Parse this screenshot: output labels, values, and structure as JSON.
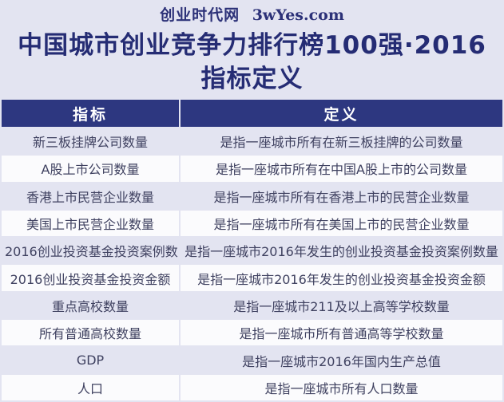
{
  "site_banner": {
    "site_name": "创业时代网",
    "site_url": "3wYes.com"
  },
  "title": {
    "line1": "中国城市创业竞争力排行榜100强·2016",
    "line2": "指标定义"
  },
  "table": {
    "headers": [
      "指标",
      "定义"
    ],
    "rows": [
      [
        "新三板挂牌公司数量",
        "是指一座城市所有在新三板挂牌的公司数量"
      ],
      [
        "A股上市公司数量",
        "是指一座城市所有在中国A股上市的公司数量"
      ],
      [
        "香港上市民营企业数量",
        "是指一座城市所有在香港上市的民营企业数量"
      ],
      [
        "美国上市民营企业数量",
        "是指一座城市所有在美国上市的民营企业数量"
      ],
      [
        "2016创业投资基金投资案例数",
        "是指一座城市2016年发生的创业投资基金投资案例数量"
      ],
      [
        "2016创业投资基金投资金额",
        "是指一座城市2016年发生的创业投资基金投资金额"
      ],
      [
        "重点高校数量",
        "是指一座城市211及以上高等学校数量"
      ],
      [
        "所有普通高校数量",
        "是指一座城市所有普通高等学校数量"
      ],
      [
        "GDP",
        "是指一座城市2016年国内生产总值"
      ],
      [
        "人口",
        "是指一座城市所有人口数量"
      ]
    ]
  },
  "colors": {
    "navy_header": "#2d3780",
    "title_text": "#252c74",
    "banner_text": "#2c3178",
    "row_lavender": "#e3e4f1",
    "row_white": "#fbfbfd",
    "row_text": "#3f4160",
    "page_background": "#e3e4f1"
  }
}
